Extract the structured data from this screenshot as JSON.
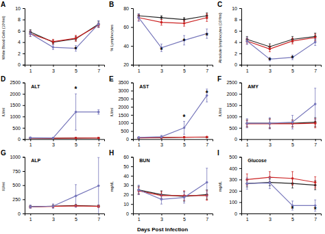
{
  "chart_data": [
    {
      "type": "line",
      "panel_label": "A",
      "ylabel": "White Blood Cells (10³/ml)",
      "x": [
        1,
        3,
        5,
        7
      ],
      "xlim": [
        0.5,
        7.5
      ],
      "xticks": [
        1,
        3,
        5,
        7
      ],
      "ylim": [
        0,
        10
      ],
      "yticks": [
        0,
        2,
        4,
        6,
        8,
        10
      ],
      "grid": false,
      "marker": "circle",
      "series": [
        {
          "color": "#222222",
          "values": [
            5.8,
            4.0,
            4.6,
            7.2
          ],
          "errors": [
            0.4,
            0.3,
            0.4,
            0.5
          ]
        },
        {
          "color": "#cc2222",
          "values": [
            5.5,
            4.1,
            4.7,
            7.0
          ],
          "errors": [
            0.5,
            0.4,
            0.5,
            0.4
          ]
        },
        {
          "color": "#7777bb",
          "values": [
            5.5,
            3.1,
            2.9,
            7.2
          ],
          "errors": [
            0.5,
            0.4,
            0.5,
            0.6
          ]
        }
      ],
      "annotations": [
        {
          "x": 5,
          "y": 2.3,
          "text": "*"
        }
      ]
    },
    {
      "type": "line",
      "panel_label": "B",
      "ylabel": "% Lymphocytes",
      "x": [
        1,
        3,
        5,
        7
      ],
      "xlim": [
        0.5,
        7.5
      ],
      "xticks": [
        1,
        3,
        5,
        7
      ],
      "ylim": [
        20,
        80
      ],
      "yticks": [
        20,
        40,
        60,
        80
      ],
      "grid": false,
      "marker": "circle",
      "series": [
        {
          "color": "#222222",
          "values": [
            72,
            70,
            68,
            72
          ],
          "errors": [
            2,
            2,
            2,
            3
          ]
        },
        {
          "color": "#cc2222",
          "values": [
            70,
            65,
            64,
            70
          ],
          "errors": [
            3,
            3,
            3,
            4
          ]
        },
        {
          "color": "#7777bb",
          "values": [
            70,
            38,
            46,
            53
          ],
          "errors": [
            4,
            4,
            5,
            5
          ]
        }
      ],
      "annotations": [
        {
          "x": 3,
          "y": 33,
          "text": "*"
        },
        {
          "x": 5,
          "y": 42,
          "text": "*"
        },
        {
          "x": 7,
          "y": 48,
          "text": "*"
        }
      ]
    },
    {
      "type": "line",
      "panel_label": "C",
      "ylabel": "Absolute lymphocytes (10³/ml)",
      "x": [
        1,
        3,
        5,
        7
      ],
      "xlim": [
        0.5,
        7.5
      ],
      "xticks": [
        1,
        3,
        5,
        7
      ],
      "ylim": [
        0,
        10
      ],
      "yticks": [
        0,
        2,
        4,
        6,
        8,
        10
      ],
      "grid": false,
      "marker": "circle",
      "series": [
        {
          "color": "#222222",
          "values": [
            4.5,
            3.2,
            4.5,
            5.0
          ],
          "errors": [
            0.5,
            0.5,
            0.5,
            0.6
          ]
        },
        {
          "color": "#cc2222",
          "values": [
            4.2,
            2.8,
            4.2,
            4.8
          ],
          "errors": [
            0.5,
            0.5,
            0.5,
            0.6
          ]
        },
        {
          "color": "#7777bb",
          "values": [
            4.2,
            1.0,
            1.3,
            4.0
          ],
          "errors": [
            0.6,
            0.3,
            0.4,
            0.6
          ]
        }
      ],
      "annotations": [
        {
          "x": 3,
          "y": 0.3,
          "text": "*"
        },
        {
          "x": 5,
          "y": 0.7,
          "text": "*"
        }
      ]
    },
    {
      "type": "line",
      "panel_label": "D",
      "title": "ALT",
      "ylabel": "IU/ml",
      "x": [
        1,
        3,
        5,
        7
      ],
      "xlim": [
        0.5,
        7.5
      ],
      "xticks": [
        1,
        3,
        5,
        7
      ],
      "ylim": [
        0,
        2500
      ],
      "yticks": [
        0,
        500,
        1000,
        1500,
        2000,
        2500
      ],
      "grid": false,
      "marker": "circle",
      "series": [
        {
          "color": "#222222",
          "values": [
            50,
            40,
            50,
            50
          ],
          "errors": [
            20,
            15,
            20,
            15
          ]
        },
        {
          "color": "#cc2222",
          "values": [
            45,
            35,
            45,
            50
          ],
          "errors": [
            20,
            15,
            20,
            20
          ]
        },
        {
          "color": "#7777bb",
          "values": [
            60,
            50,
            1200,
            1200
          ],
          "errors": [
            30,
            30,
            800,
            100
          ]
        }
      ],
      "annotations": [
        {
          "x": 5,
          "y": 2100,
          "text": "*"
        }
      ]
    },
    {
      "type": "line",
      "panel_label": "E",
      "title": "AST",
      "ylabel": "IU/ml",
      "x": [
        1,
        3,
        5,
        7
      ],
      "xlim": [
        0.5,
        7.5
      ],
      "xticks": [
        1,
        3,
        5,
        7
      ],
      "ylim": [
        0,
        3500
      ],
      "yticks": [
        0,
        500,
        1000,
        1500,
        2000,
        2500,
        3000,
        3500
      ],
      "grid": false,
      "marker": "circle",
      "series": [
        {
          "color": "#222222",
          "values": [
            80,
            100,
            120,
            120
          ],
          "errors": [
            30,
            30,
            30,
            30
          ]
        },
        {
          "color": "#cc2222",
          "values": [
            75,
            90,
            115,
            130
          ],
          "errors": [
            25,
            30,
            30,
            35
          ]
        },
        {
          "color": "#7777bb",
          "values": [
            100,
            150,
            700,
            2700
          ],
          "errors": [
            50,
            80,
            400,
            400
          ]
        }
      ],
      "annotations": [
        {
          "x": 5,
          "y": 1200,
          "text": "*"
        },
        {
          "x": 7,
          "y": 2700,
          "text": "*"
        }
      ]
    },
    {
      "type": "line",
      "panel_label": "F",
      "title": "AMY",
      "ylabel": "IU/ml",
      "x": [
        1,
        3,
        5,
        7
      ],
      "xlim": [
        0.5,
        7.5
      ],
      "xticks": [
        1,
        3,
        5,
        7
      ],
      "ylim": [
        0,
        2500
      ],
      "yticks": [
        0,
        500,
        1000,
        1500,
        2000,
        2500
      ],
      "grid": false,
      "marker": "circle",
      "series": [
        {
          "color": "#222222",
          "values": [
            700,
            700,
            700,
            750
          ],
          "errors": [
            150,
            200,
            150,
            200
          ]
        },
        {
          "color": "#cc2222",
          "values": [
            680,
            680,
            680,
            700
          ],
          "errors": [
            150,
            200,
            150,
            200
          ]
        },
        {
          "color": "#7777bb",
          "values": [
            700,
            700,
            750,
            1550
          ],
          "errors": [
            200,
            250,
            300,
            700
          ]
        }
      ]
    },
    {
      "type": "line",
      "panel_label": "G",
      "title": "ALP",
      "ylabel": "IU/ml",
      "x": [
        1,
        3,
        5,
        7
      ],
      "xlim": [
        0.5,
        7.5
      ],
      "xticks": [
        1,
        3,
        5,
        7
      ],
      "ylim": [
        0,
        1000
      ],
      "yticks": [
        0,
        250,
        500,
        750,
        1000
      ],
      "grid": false,
      "marker": "circle",
      "series": [
        {
          "color": "#222222",
          "values": [
            120,
            130,
            140,
            130
          ],
          "errors": [
            20,
            20,
            20,
            20
          ]
        },
        {
          "color": "#cc2222",
          "values": [
            115,
            125,
            135,
            125
          ],
          "errors": [
            20,
            20,
            20,
            20
          ]
        },
        {
          "color": "#7777bb",
          "values": [
            120,
            130,
            310,
            490
          ],
          "errors": [
            30,
            40,
            200,
            500
          ]
        }
      ]
    },
    {
      "type": "line",
      "panel_label": "H",
      "title": "BUN",
      "ylabel": "mg/dL",
      "xlabel": "Days Post Infection",
      "x": [
        1,
        3,
        5,
        7
      ],
      "xlim": [
        0.5,
        7.5
      ],
      "xticks": [
        1,
        3,
        5,
        7
      ],
      "ylim": [
        0,
        60
      ],
      "yticks": [
        0,
        10,
        20,
        30,
        40,
        50,
        60
      ],
      "grid": false,
      "marker": "circle",
      "series": [
        {
          "color": "#222222",
          "values": [
            25,
            20,
            18,
            20
          ],
          "errors": [
            4,
            4,
            5,
            5
          ]
        },
        {
          "color": "#cc2222",
          "values": [
            24,
            19,
            19,
            19
          ],
          "errors": [
            4,
            4,
            5,
            5
          ]
        },
        {
          "color": "#7777bb",
          "values": [
            25,
            15,
            17,
            33
          ],
          "errors": [
            5,
            5,
            6,
            15
          ]
        }
      ]
    },
    {
      "type": "line",
      "panel_label": "I",
      "title": "Glucose",
      "ylabel": "mg/dL",
      "x": [
        1,
        3,
        5,
        7
      ],
      "xlim": [
        0.5,
        7.5
      ],
      "xticks": [
        1,
        3,
        5,
        7
      ],
      "ylim": [
        0,
        500
      ],
      "yticks": [
        0,
        100,
        200,
        300,
        400,
        500
      ],
      "grid": false,
      "marker": "circle",
      "series": [
        {
          "color": "#222222",
          "values": [
            265,
            275,
            265,
            250
          ],
          "errors": [
            30,
            30,
            40,
            40
          ]
        },
        {
          "color": "#cc2222",
          "values": [
            300,
            320,
            310,
            275
          ],
          "errors": [
            50,
            50,
            60,
            50
          ]
        },
        {
          "color": "#7777bb",
          "values": [
            265,
            270,
            70,
            70
          ],
          "errors": [
            50,
            50,
            40,
            50
          ]
        }
      ],
      "annotations": [
        {
          "x": 5,
          "y": 18,
          "text": "*"
        },
        {
          "x": 7,
          "y": 10,
          "text": "*"
        }
      ]
    }
  ]
}
